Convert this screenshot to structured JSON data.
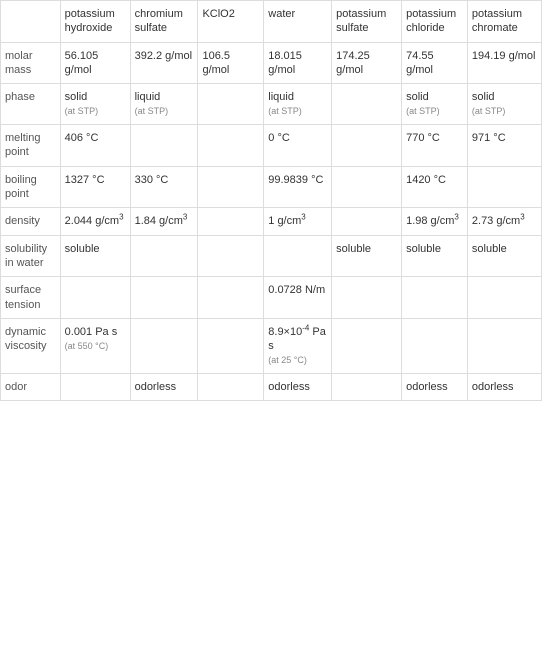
{
  "columns": [
    "",
    "potassium hydroxide",
    "chromium sulfate",
    "KClO2",
    "water",
    "potassium sulfate",
    "potassium chloride",
    "potassium chromate"
  ],
  "rows": [
    {
      "label": "molar mass",
      "cells": [
        "56.105 g/mol",
        "392.2 g/mol",
        "106.5 g/mol",
        "18.015 g/mol",
        "174.25 g/mol",
        "74.55 g/mol",
        "194.19 g/mol"
      ]
    },
    {
      "label": "phase",
      "cells": [
        {
          "text": "solid",
          "sub": "(at STP)"
        },
        {
          "text": "liquid",
          "sub": "(at STP)"
        },
        "",
        {
          "text": "liquid",
          "sub": "(at STP)"
        },
        "",
        {
          "text": "solid",
          "sub": "(at STP)"
        },
        {
          "text": "solid",
          "sub": "(at STP)"
        }
      ]
    },
    {
      "label": "melting point",
      "cells": [
        "406 °C",
        "",
        "",
        "0 °C",
        "",
        "770 °C",
        "971 °C"
      ]
    },
    {
      "label": "boiling point",
      "cells": [
        "1327 °C",
        "330 °C",
        "",
        "99.9839 °C",
        "",
        "1420 °C",
        ""
      ]
    },
    {
      "label": "density",
      "cells": [
        {
          "html": "2.044 g/cm<sup>3</sup>"
        },
        {
          "html": "1.84 g/cm<sup>3</sup>"
        },
        "",
        {
          "html": "1 g/cm<sup>3</sup>"
        },
        "",
        {
          "html": "1.98 g/cm<sup>3</sup>"
        },
        {
          "html": "2.73 g/cm<sup>3</sup>"
        }
      ]
    },
    {
      "label": "solubility in water",
      "cells": [
        "soluble",
        "",
        "",
        "",
        "soluble",
        "soluble",
        "soluble"
      ]
    },
    {
      "label": "surface tension",
      "cells": [
        "",
        "",
        "",
        "0.0728 N/m",
        "",
        "",
        ""
      ]
    },
    {
      "label": "dynamic viscosity",
      "cells": [
        {
          "text": "0.001 Pa s",
          "sub": "(at 550 °C)"
        },
        "",
        "",
        {
          "html": "8.9×10<sup>-4</sup> Pa s",
          "sub": "(at 25 °C)"
        },
        "",
        "",
        ""
      ]
    },
    {
      "label": "odor",
      "cells": [
        "",
        "odorless",
        "",
        "odorless",
        "",
        "odorless",
        "odorless"
      ]
    }
  ],
  "style": {
    "border_color": "#dddddd",
    "background_color": "#ffffff",
    "text_color": "#333333",
    "header_color": "#555555",
    "sub_color": "#888888",
    "font_size": 11,
    "sub_font_size": 9
  }
}
